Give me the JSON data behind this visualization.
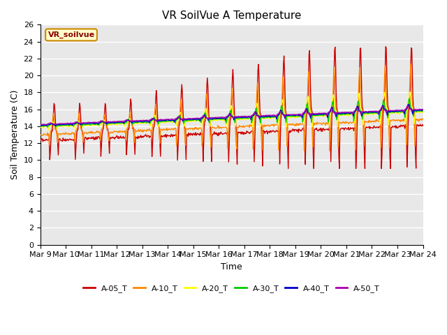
{
  "title": "VR SoilVue A Temperature",
  "xlabel": "Time",
  "ylabel": "Soil Temperature (C)",
  "ylim": [
    0,
    26
  ],
  "yticks": [
    0,
    2,
    4,
    6,
    8,
    10,
    12,
    14,
    16,
    18,
    20,
    22,
    24,
    26
  ],
  "x_label_days": [
    9,
    10,
    11,
    12,
    13,
    14,
    15,
    16,
    17,
    18,
    19,
    20,
    21,
    22,
    23,
    24
  ],
  "series_colors": {
    "A-05_T": "#cc0000",
    "A-10_T": "#ff8800",
    "A-20_T": "#ffff00",
    "A-30_T": "#00cc00",
    "A-40_T": "#0000cc",
    "A-50_T": "#aa00aa"
  },
  "legend_label": "VR_soilvue",
  "plot_bg_color": "#e8e8e8",
  "grid_color": "#ffffff",
  "title_fontsize": 11,
  "axis_label_fontsize": 9,
  "tick_fontsize": 8,
  "legend_box_color": "#ffffcc",
  "legend_box_border": "#cc8800"
}
